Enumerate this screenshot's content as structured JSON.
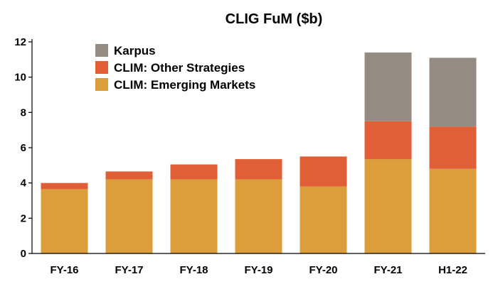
{
  "chart_data": {
    "type": "bar",
    "stacked": true,
    "title": "CLIG FuM ($b)",
    "xlabel": "",
    "ylabel": "",
    "categories": [
      "FY-16",
      "FY-17",
      "FY-18",
      "FY-19",
      "FY-20",
      "FY-21",
      "H1-22"
    ],
    "series": [
      {
        "name": "CLIM: Emerging Markets",
        "color": "#dc9e3a",
        "values": [
          3.65,
          4.2,
          4.2,
          4.2,
          3.8,
          5.35,
          4.8
        ]
      },
      {
        "name": "CLIM: Other Strategies",
        "color": "#e05f37",
        "values": [
          0.35,
          0.45,
          0.85,
          1.15,
          1.7,
          2.15,
          2.4
        ]
      },
      {
        "name": "Karpus",
        "color": "#948b82",
        "values": [
          0,
          0,
          0,
          0,
          0,
          3.9,
          3.9
        ]
      }
    ],
    "ylim": [
      0,
      12
    ],
    "yticks": [
      0,
      2,
      4,
      6,
      8,
      10,
      12
    ],
    "grid": false,
    "legend_position": "top-left",
    "legend_order": [
      "Karpus",
      "CLIM: Other Strategies",
      "CLIM: Emerging Markets"
    ]
  }
}
